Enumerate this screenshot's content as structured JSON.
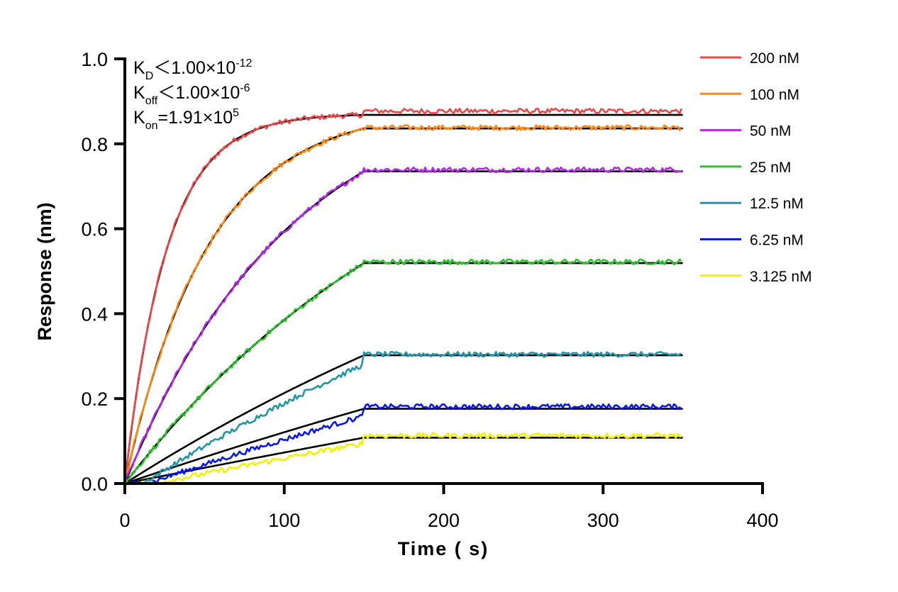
{
  "chart_data": {
    "type": "line",
    "title": "",
    "xlabel": "Time ( s)",
    "ylabel": "Response (nm)",
    "xlim": [
      0,
      400
    ],
    "ylim": [
      0,
      1.0
    ],
    "x_ticks": [
      "0",
      "100",
      "200",
      "300",
      "400"
    ],
    "y_ticks": [
      "0.0",
      "0.2",
      "0.4",
      "0.6",
      "0.8",
      "1.0"
    ],
    "grid": false,
    "legend_placement": "right",
    "association_end_s": 150,
    "dissociation_end_s": 350,
    "kinetics": {
      "kon": 191000,
      "annotations": [
        {
          "main": "K",
          "sub": "D",
          "rel": "＜1.00×10",
          "sup": "-12"
        },
        {
          "main": "K",
          "sub": "off",
          "rel": "＜1.00×10",
          "sup": "-6"
        },
        {
          "main": "K",
          "sub": "on",
          "rel": "=1.91×10",
          "sup": "5"
        }
      ]
    },
    "fit_color": "#000000",
    "series": [
      {
        "name": "200 nM",
        "conc_nM": 200,
        "plateau": 0.868,
        "data_offset": 0.009,
        "color": "#f04848"
      },
      {
        "name": "100 nM",
        "conc_nM": 100,
        "plateau": 0.836,
        "data_offset": 0.002,
        "color": "#ff8a10"
      },
      {
        "name": "50 nM",
        "conc_nM": 50,
        "plateau": 0.735,
        "data_offset": 0.004,
        "color": "#b428e6"
      },
      {
        "name": "25 nM",
        "conc_nM": 25,
        "plateau": 0.519,
        "data_offset": 0.003,
        "color": "#28c428"
      },
      {
        "name": "12.5 nM",
        "conc_nM": 12.5,
        "plateau": 0.302,
        "data_offset": 0.002,
        "color": "#2096aa"
      },
      {
        "name": "6.25 nM",
        "conc_nM": 6.25,
        "plateau": 0.176,
        "data_offset": 0.005,
        "color": "#0818f0"
      },
      {
        "name": "3.125 nM",
        "conc_nM": 3.125,
        "plateau": 0.108,
        "data_offset": 0.005,
        "color": "#f4f000"
      }
    ]
  }
}
